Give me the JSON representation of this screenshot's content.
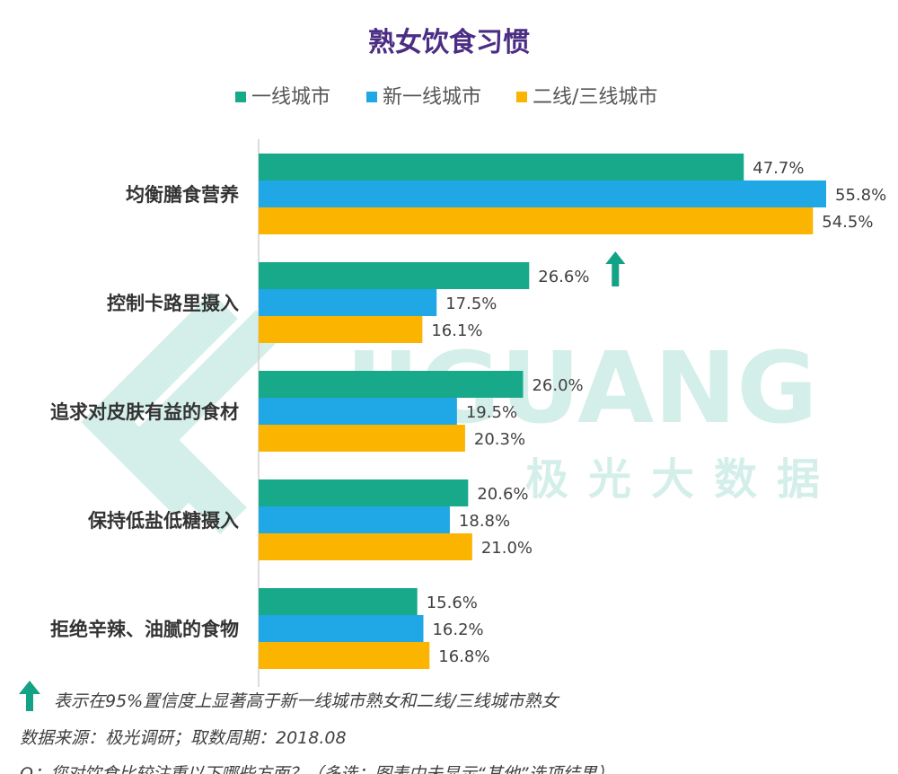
{
  "watermark": {
    "brand": "JIGUANG",
    "brand_cn": "极光大数据"
  },
  "colors": {
    "title": "#4b2e83",
    "series": [
      "#17a98a",
      "#1fa7e6",
      "#fbb400"
    ],
    "arrow": "#12a386",
    "text": "#404040",
    "axis": "#d0d0d0"
  },
  "chart_data": {
    "type": "bar",
    "orientation": "horizontal",
    "title": "熟女饮食习惯",
    "categories": [
      "均衡膳食营养",
      "控制卡路里摄入",
      "追求对皮肤有益的食材",
      "保持低盐低糖摄入",
      "拒绝辛辣、油腻的食物"
    ],
    "series": [
      {
        "name": "一线城市",
        "values": [
          47.7,
          26.6,
          26.0,
          20.6,
          15.6
        ]
      },
      {
        "name": "新一线城市",
        "values": [
          55.8,
          17.5,
          19.5,
          18.8,
          16.2
        ]
      },
      {
        "name": "二线/三线城市",
        "values": [
          54.5,
          16.1,
          20.3,
          21.0,
          16.8
        ]
      }
    ],
    "value_labels": [
      [
        "47.7%",
        "26.6%",
        "26.0%",
        "20.6%",
        "15.6%"
      ],
      [
        "55.8%",
        "17.5%",
        "19.5%",
        "18.8%",
        "16.2%"
      ],
      [
        "54.5%",
        "16.1%",
        "20.3%",
        "21.0%",
        "16.8%"
      ]
    ],
    "significance_markers": [
      {
        "category_index": 1,
        "series_index": 0,
        "icon": "up-arrow-icon"
      }
    ],
    "legend_position": "top-center",
    "grid": false,
    "xlim": [
      0,
      56
    ]
  },
  "notes": {
    "significance": "表示在95%置信度上显著高于新一线城市熟女和二线/三线城市熟女",
    "source": "数据来源：极光调研；取数周期：2018.08",
    "question": "Q：您对饮食比较注重以下哪些方面？（多选；图表中未显示“其他”选项结果）"
  }
}
